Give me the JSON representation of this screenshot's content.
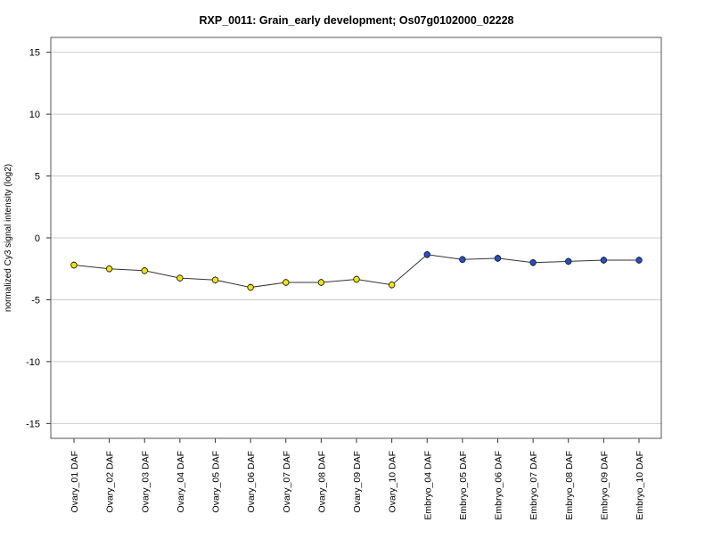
{
  "chart_data": {
    "type": "line",
    "title": "RXP_0011: Grain_early development; Os07g0102000_02228",
    "xlabel": "",
    "ylabel": "normalized Cy3 signal intensity (log2)",
    "ylim": [
      -16.2,
      16.2
    ],
    "yticks": [
      -15,
      -10,
      -5,
      0,
      5,
      10,
      15
    ],
    "grid": true,
    "categories": [
      "Ovary_01 DAF",
      "Ovary_02 DAF",
      "Ovary_03 DAF",
      "Ovary_04 DAF",
      "Ovary_05 DAF",
      "Ovary_06 DAF",
      "Ovary_07 DAF",
      "Ovary_08 DAF",
      "Ovary_09 DAF",
      "Ovary_10 DAF",
      "Embryo_04 DAF",
      "Embryo_05 DAF",
      "Embryo_06 DAF",
      "Embryo_07 DAF",
      "Embryo_08 DAF",
      "Embryo_09 DAF",
      "Embryo_10 DAF"
    ],
    "values": [
      -2.2,
      -2.5,
      -2.65,
      -3.25,
      -3.4,
      -4.0,
      -3.6,
      -3.6,
      -3.35,
      -3.8,
      -1.35,
      -1.75,
      -1.65,
      -2.0,
      -1.9,
      -1.8,
      -1.8
    ],
    "point_colors": [
      "#f2e600",
      "#f2e600",
      "#f2e600",
      "#f2e600",
      "#f2e600",
      "#f2e600",
      "#f2e600",
      "#f2e600",
      "#f2e600",
      "#f2e600",
      "#1f4fd0",
      "#1f4fd0",
      "#1f4fd0",
      "#1f4fd0",
      "#1f4fd0",
      "#1f4fd0",
      "#1f4fd0"
    ],
    "line_color": "#333333",
    "grid_color": "#cccccc"
  }
}
